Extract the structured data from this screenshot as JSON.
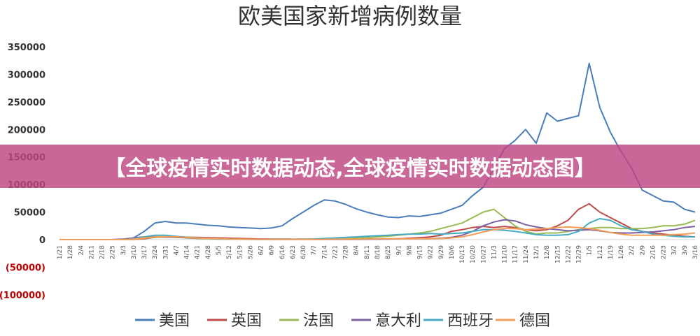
{
  "banner": {
    "text": "【全球疫情实时数据动态,全球疫情实时数据动态图】"
  },
  "chart_data": {
    "type": "line",
    "title": "欧美国家新增病例数量",
    "xlabel": "",
    "ylabel": "",
    "ylim": [
      -100000,
      350000
    ],
    "yticks": [
      {
        "value": 350000,
        "label": "350000",
        "color": "#333333"
      },
      {
        "value": 300000,
        "label": "300000",
        "color": "#333333"
      },
      {
        "value": 250000,
        "label": "250000",
        "color": "#333333"
      },
      {
        "value": 200000,
        "label": "200000",
        "color": "#333333"
      },
      {
        "value": 150000,
        "label": "150000",
        "color": "#333333"
      },
      {
        "value": 100000,
        "label": "100000",
        "color": "#333333"
      },
      {
        "value": 50000,
        "label": "50000",
        "color": "#333333"
      },
      {
        "value": 0,
        "label": "0",
        "color": "#333333"
      },
      {
        "value": -50000,
        "label": "(50000)",
        "color": "#c00000"
      },
      {
        "value": -100000,
        "label": "(100000)",
        "color": "#c00000"
      }
    ],
    "xticks": [
      "1/21",
      "1/28",
      "2/4",
      "2/11",
      "2/18",
      "2/25",
      "3/3",
      "3/10",
      "3/17",
      "3/24",
      "3/31",
      "4/7",
      "4/14",
      "4/21",
      "4/28",
      "5/5",
      "5/12",
      "5/19",
      "5/26",
      "6/2",
      "6/9",
      "6/16",
      "6/23",
      "6/30",
      "7/7",
      "7/14",
      "7/21",
      "7/28",
      "8/4",
      "8/11",
      "8/18",
      "8/25",
      "9/1",
      "9/8",
      "9/15",
      "9/22",
      "9/29",
      "10/6",
      "10/13",
      "10/20",
      "10/27",
      "11/3",
      "11/10",
      "11/17",
      "11/24",
      "12/1",
      "12/8",
      "12/15",
      "12/22",
      "12/29",
      "1/5",
      "1/12",
      "1/19",
      "1/26",
      "2/2",
      "2/9",
      "2/16",
      "2/23",
      "3/2",
      "3/9",
      "3/16"
    ],
    "legend_position": "bottom",
    "grid": false,
    "series": [
      {
        "name": "美国",
        "color": "#4a7ebb",
        "values": [
          0,
          0,
          0,
          0,
          0,
          0,
          500,
          3000,
          15000,
          30000,
          33000,
          30000,
          30000,
          28000,
          26000,
          25000,
          23000,
          22000,
          21000,
          20000,
          21000,
          25000,
          38000,
          50000,
          62000,
          72000,
          70000,
          64000,
          56000,
          50000,
          45000,
          41000,
          40000,
          43000,
          42000,
          45000,
          48000,
          55000,
          62000,
          80000,
          95000,
          130000,
          165000,
          180000,
          200000,
          175000,
          230000,
          215000,
          220000,
          225000,
          320000,
          240000,
          195000,
          160000,
          130000,
          90000,
          80000,
          70000,
          68000,
          55000,
          50000
        ]
      },
      {
        "name": "英国",
        "color": "#be4b48",
        "values": [
          0,
          0,
          0,
          0,
          0,
          0,
          0,
          300,
          1500,
          4000,
          5000,
          5000,
          4500,
          4000,
          3500,
          3000,
          2500,
          2000,
          1500,
          1200,
          1000,
          900,
          800,
          700,
          700,
          600,
          700,
          800,
          1000,
          1200,
          1100,
          1200,
          1500,
          2500,
          3500,
          5000,
          8000,
          15000,
          18000,
          22000,
          24000,
          22000,
          24000,
          22000,
          18000,
          16000,
          18000,
          25000,
          35000,
          55000,
          65000,
          50000,
          40000,
          30000,
          20000,
          15000,
          12000,
          10000,
          8000,
          6000,
          5000
        ]
      },
      {
        "name": "法国",
        "color": "#98b954",
        "values": [
          0,
          0,
          0,
          0,
          0,
          0,
          0,
          500,
          2500,
          4500,
          5000,
          4000,
          3000,
          2000,
          1500,
          1000,
          800,
          600,
          500,
          500,
          500,
          500,
          600,
          700,
          800,
          900,
          1200,
          1500,
          2500,
          3500,
          5000,
          6000,
          8000,
          10000,
          12000,
          15000,
          20000,
          25000,
          30000,
          40000,
          50000,
          55000,
          40000,
          25000,
          15000,
          10000,
          12000,
          12000,
          15000,
          18000,
          20000,
          22000,
          22000,
          20000,
          20000,
          20000,
          22000,
          25000,
          25000,
          28000,
          35000
        ]
      },
      {
        "name": "意大利",
        "color": "#7d60a0",
        "values": [
          0,
          0,
          0,
          0,
          0,
          100,
          1000,
          3000,
          5000,
          5500,
          4500,
          4000,
          3500,
          3000,
          2500,
          1500,
          1000,
          800,
          600,
          400,
          300,
          300,
          250,
          250,
          250,
          250,
          250,
          300,
          400,
          500,
          800,
          1200,
          1500,
          1700,
          1800,
          1800,
          2500,
          4000,
          8000,
          15000,
          25000,
          32000,
          36000,
          34000,
          27000,
          23000,
          20000,
          18000,
          16000,
          17000,
          18000,
          16000,
          13000,
          12000,
          12000,
          13000,
          14000,
          16000,
          18000,
          22000,
          24000
        ]
      },
      {
        "name": "西班牙",
        "color": "#46aac5",
        "values": [
          0,
          0,
          0,
          0,
          0,
          0,
          200,
          1500,
          5000,
          8000,
          8000,
          6000,
          4500,
          3500,
          2000,
          1000,
          800,
          600,
          500,
          400,
          300,
          300,
          400,
          600,
          1000,
          2000,
          3000,
          4000,
          5000,
          6000,
          7000,
          8000,
          9000,
          10000,
          10000,
          11000,
          10000,
          11000,
          12000,
          15000,
          18000,
          18000,
          17000,
          15000,
          12000,
          9000,
          8000,
          8000,
          9000,
          15000,
          30000,
          38000,
          35000,
          25000,
          18000,
          15000,
          10000,
          8000,
          6000,
          5000,
          5000
        ]
      },
      {
        "name": "德国",
        "color": "#f59d56",
        "values": [
          0,
          0,
          0,
          0,
          0,
          0,
          100,
          800,
          3000,
          5000,
          5500,
          5000,
          4000,
          3000,
          2000,
          1500,
          1000,
          800,
          600,
          500,
          500,
          400,
          400,
          400,
          400,
          500,
          700,
          800,
          1000,
          1200,
          1400,
          1500,
          1500,
          1600,
          1700,
          1800,
          2000,
          3000,
          5000,
          9000,
          14000,
          18000,
          20000,
          20000,
          18000,
          19000,
          20000,
          22000,
          23000,
          22000,
          20000,
          17000,
          13000,
          10000,
          8000,
          8000,
          8000,
          8000,
          9000,
          10000,
          12000
        ]
      }
    ]
  }
}
